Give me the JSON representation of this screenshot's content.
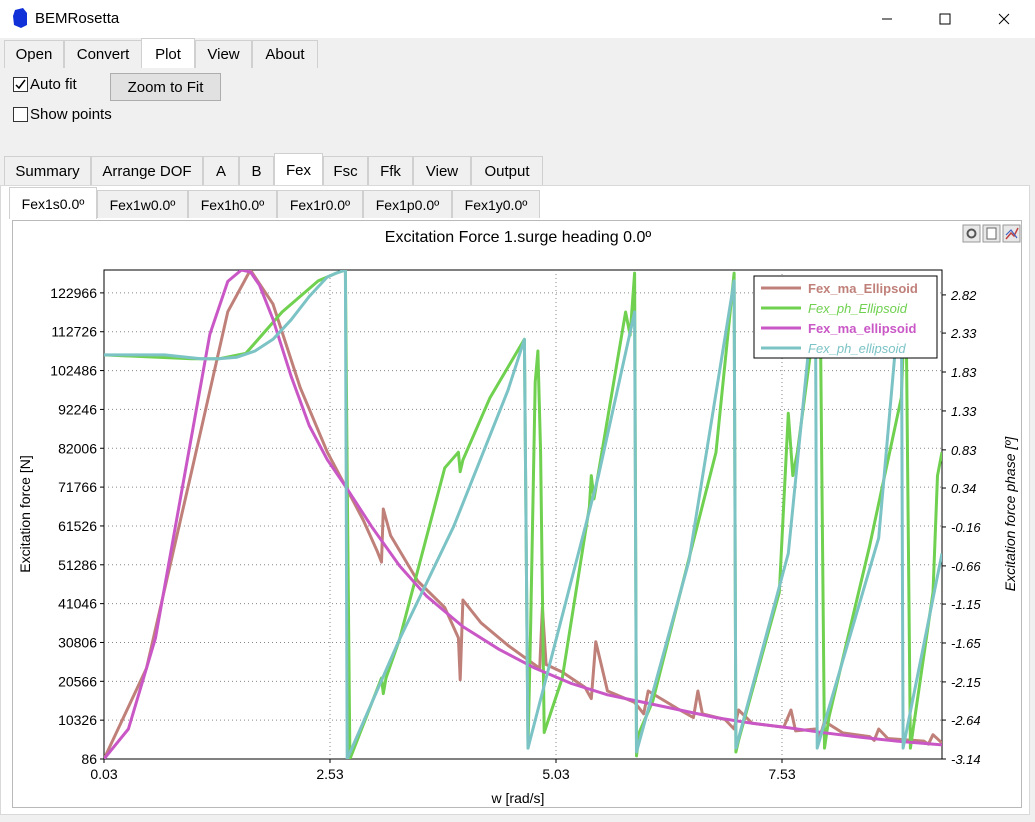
{
  "window": {
    "title": "BEMRosetta"
  },
  "menu_tabs": [
    "Open",
    "Convert",
    "Plot",
    "View",
    "About"
  ],
  "options": {
    "auto_fit": "Auto fit",
    "auto_fit_checked": true,
    "show_points": "Show points",
    "show_points_checked": false,
    "zoom_button": "Zoom to Fit"
  },
  "tabs": [
    "Summary",
    "Arrange DOF",
    "A",
    "B",
    "Fex",
    "Fsc",
    "Ffk",
    "View",
    "Output"
  ],
  "active_tab": "Fex",
  "subtabs": [
    "Fex1s0.0º",
    "Fex1w0.0º",
    "Fex1h0.0º",
    "Fex1r0.0º",
    "Fex1p0.0º",
    "Fex1y0.0º"
  ],
  "active_subtab": "Fex1s0.0º",
  "chart_data": {
    "type": "line",
    "title": "Excitation Force 1.surge heading 0.0º",
    "xlabel": "w [rad/s]",
    "ylabel": "Excitation force [N]",
    "y2label": "Excitation force phase [º]",
    "xlim": [
      0.03,
      9.3
    ],
    "ylim": [
      86,
      129000
    ],
    "y2lim": [
      -3.14,
      3.14
    ],
    "x_ticks": [
      "0.03",
      "2.53",
      "5.03",
      "7.53"
    ],
    "y_ticks": [
      "86",
      "10326",
      "20566",
      "30806",
      "41046",
      "51286",
      "61526",
      "71766",
      "82006",
      "92246",
      "102486",
      "112726",
      "122966"
    ],
    "y2_ticks": [
      "-3.14",
      "-2.64",
      "-2.15",
      "-1.65",
      "-1.15",
      "-0.66",
      "-0.16",
      "0.34",
      "0.83",
      "1.33",
      "1.83",
      "2.33",
      "2.82"
    ],
    "grid": true,
    "legend_position": "top-right",
    "series": [
      {
        "name": "Fex_ma_Ellipsoid",
        "color": "#c0807a",
        "axis": "left",
        "italic": false,
        "x": [
          0.03,
          0.5,
          1.0,
          1.4,
          1.65,
          1.9,
          2.2,
          2.5,
          2.7,
          2.9,
          3.05,
          3.1,
          3.12,
          3.2,
          3.5,
          3.8,
          3.95,
          3.97,
          4.0,
          4.2,
          4.5,
          4.85,
          4.88,
          4.92,
          5.1,
          5.35,
          5.42,
          5.47,
          5.6,
          5.9,
          6.0,
          6.05,
          6.4,
          6.55,
          6.6,
          6.65,
          6.9,
          7.0,
          7.05,
          7.2,
          7.55,
          7.63,
          7.68,
          7.9,
          7.95,
          8.0,
          8.2,
          8.5,
          8.55,
          8.6,
          8.7,
          9.1,
          9.15,
          9.2,
          9.3
        ],
        "y": [
          86,
          24000,
          76000,
          118000,
          129000,
          120000,
          98000,
          81000,
          72000,
          63000,
          55000,
          52000,
          66000,
          59000,
          47000,
          40000,
          32000,
          21000,
          42000,
          36000,
          30000,
          24000,
          40000,
          25000,
          23000,
          19000,
          16000,
          31000,
          18000,
          15000,
          12000,
          18000,
          13000,
          11000,
          18000,
          12000,
          10500,
          8000,
          13000,
          9500,
          8500,
          13000,
          7500,
          8000,
          6000,
          10000,
          7000,
          6000,
          5000,
          8000,
          5500,
          4800,
          4000,
          6500,
          4300
        ]
      },
      {
        "name": "Fex_ph_Ellipsoid",
        "color": "#6fd14f",
        "axis": "right",
        "italic": true,
        "x": [
          0.03,
          1.0,
          1.3,
          1.6,
          2.0,
          2.4,
          2.6,
          2.7,
          2.72,
          2.75,
          3.1,
          3.12,
          3.15,
          3.3,
          3.8,
          3.95,
          3.97,
          4.0,
          4.3,
          4.68,
          4.72,
          4.75,
          4.8,
          4.83,
          4.86,
          4.9,
          5.1,
          5.4,
          5.42,
          5.45,
          5.8,
          5.85,
          5.9,
          5.92,
          5.95,
          6.1,
          6.8,
          7.0,
          7.02,
          7.05,
          7.5,
          7.6,
          7.65,
          7.7,
          7.95,
          8.0,
          8.05,
          8.5,
          8.85,
          8.9,
          8.95,
          9.2,
          9.25,
          9.3
        ],
        "y": [
          2.05,
          2.0,
          2.0,
          2.07,
          2.6,
          3.0,
          3.1,
          3.14,
          0.5,
          -3.14,
          -2.1,
          -2.3,
          -2.1,
          -1.6,
          0.6,
          0.8,
          0.55,
          0.7,
          1.5,
          2.25,
          -3.0,
          -1.4,
          1.7,
          2.1,
          0.8,
          -2.8,
          -2.1,
          0.1,
          0.5,
          0.2,
          2.6,
          2.3,
          3.1,
          -3.1,
          -2.8,
          -2.4,
          0.8,
          3.1,
          -3.05,
          -2.9,
          -1.0,
          1.3,
          0.5,
          0.8,
          3.0,
          -3.0,
          -2.6,
          -0.4,
          1.5,
          3.0,
          -3.0,
          -1.0,
          0.5,
          0.8
        ]
      },
      {
        "name": "Fex_ma_ellipsoid",
        "color": "#c957c6",
        "axis": "left",
        "italic": false,
        "x": [
          0.03,
          0.3,
          0.6,
          0.9,
          1.2,
          1.4,
          1.55,
          1.65,
          1.75,
          1.9,
          2.1,
          2.3,
          2.5,
          2.7,
          3.0,
          3.3,
          3.6,
          4.0,
          4.4,
          4.8,
          5.2,
          5.6,
          6.0,
          6.4,
          6.8,
          7.2,
          7.6,
          8.0,
          8.4,
          8.8,
          9.3
        ],
        "y": [
          86,
          8000,
          32000,
          72000,
          112000,
          126000,
          129000,
          128500,
          125000,
          116000,
          101000,
          88000,
          79000,
          72000,
          61000,
          51000,
          43000,
          35000,
          29000,
          24000,
          20000,
          17000,
          15000,
          13000,
          11000,
          9500,
          8300,
          7000,
          5800,
          4800,
          3800
        ]
      },
      {
        "name": "Fex_ph_ellipsoid",
        "color": "#7cc3c6",
        "axis": "right",
        "italic": true,
        "x": [
          0.03,
          0.7,
          1.1,
          1.3,
          1.5,
          1.7,
          1.9,
          2.1,
          2.3,
          2.5,
          2.6,
          2.7,
          2.72,
          3.3,
          3.9,
          4.5,
          4.68,
          4.72,
          5.5,
          5.9,
          5.92,
          6.5,
          7.0,
          7.02,
          7.6,
          7.9,
          7.92,
          8.6,
          8.85,
          8.87,
          9.3
        ],
        "y": [
          2.05,
          2.05,
          2.0,
          2.0,
          2.02,
          2.1,
          2.25,
          2.5,
          2.8,
          3.05,
          3.1,
          3.14,
          -3.14,
          -1.6,
          -0.15,
          1.6,
          2.25,
          -3.0,
          0.5,
          2.6,
          -3.05,
          -0.6,
          3.0,
          -3.0,
          -0.5,
          3.0,
          -3.0,
          -0.3,
          3.0,
          -3.0,
          -0.5
        ]
      }
    ]
  }
}
